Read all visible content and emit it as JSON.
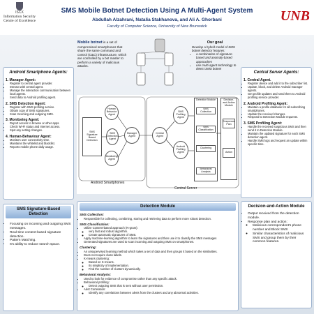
{
  "header": {
    "title": "SMS Mobile Botnet Detection Using A Multi-Agent System",
    "authors": "Abdullah Alzahrani, Natalia Stakhanova, and Ali A. Ghorbani",
    "affiliation": "Faculty of Computer Science, University of New Brunswick",
    "logo_left": {
      "name": "ISCX",
      "org": "Information Security Centre of Excellence"
    },
    "logo_right": "UNB"
  },
  "intro": {
    "term": "Mobile botnet",
    "text": "is a set of compromised smartphones that share the same command and control (C&C) infrastructure, which are controlled by a bot master to perform a variety of malicious attacks."
  },
  "goal": {
    "title": "Our goal",
    "text": "Develop a hybrid model of SMS botnet detector features:",
    "items": [
      "a combination of signature-based and anomaly-based approaches",
      "use multi-agent technology to detect SMS botnet"
    ]
  },
  "android_agents": {
    "title": "Android Smartphone Agents:",
    "agents": [
      {
        "name": "1. Manager Agent:",
        "items": [
          "Register to central agent provider.",
          "Interact with central agent.",
          "Manage the interaction communication between local agents.",
          "Send data to Android profiling agent."
        ]
      },
      {
        "name": "2. SMS Detection Agent:",
        "items": [
          "Register with SMS profiling service.",
          "Obtain copy of SMS signatures.",
          "Scan Incoming and outgoing SMS."
        ]
      },
      {
        "name": "3. Monitoring Agent:",
        "items": [
          "Report access to browse or other apps.",
          "Check Wi-Fi status and Internet access.",
          "Spot any setting changes."
        ]
      },
      {
        "name": "4. Human-Behaviour Agent:",
        "items": [
          "Monitors user connectivity time.",
          "Maintains the whitelist and blacklist.",
          "Reports mobile phone daily usage."
        ]
      }
    ]
  },
  "server_agents": {
    "title": "Central Server Agents:",
    "agents": [
      {
        "name": "1. Central Agent.",
        "items": [
          "Register device and add it to the subscriber list.",
          "Update, block, and delete Android manager agents.",
          "Get profile updates and send them to Android profiling service provider."
        ]
      },
      {
        "name": "2. Android Profiling Agent:",
        "items": [
          "Maintain a profile database for all subscribing smartphones.",
          "Update the received changes.",
          "Respond to Detection Module requests."
        ]
      },
      {
        "name": "3. SMS Profiling Agent:",
        "items": [
          "Handle the received suspicious SMS and then send it to Detection Module.",
          "Maintain the updated signature for each SMS detection agent.",
          "Handle SMS logs and request an update within specific time."
        ]
      }
    ]
  },
  "diagram": {
    "regions": [
      "Android Smartphones",
      "Central Server"
    ],
    "nodes": [
      "Human Behavior Agent",
      "SMS Signature Based Detection",
      "SMS Detection Agent",
      "Manager Agent",
      "Monitoring Agent",
      "Central Agent",
      "SMS Profiling Agent",
      "Android Profiling Agent",
      "Detection Module",
      "SMS Collection",
      "SMS Classification",
      "Clustering",
      "Behavioral Analysis",
      "Decision-and-Action Module",
      "Responses Plan",
      "Action"
    ]
  },
  "signature": {
    "title": "SMS Signature-Based Detection",
    "items": [
      "Focusing on incoming and outgoing SMS messages.",
      "Real-time content-based signature detection.",
      "Pattern Matching.",
      "It's ability to reduce search space."
    ]
  },
  "detection": {
    "title": "Detection Module",
    "sections": [
      {
        "name": "SMS Collection:",
        "items": [
          {
            "text": "Responsible for collecting, combining, storing and retrieving data to perform more robust detection."
          }
        ]
      },
      {
        "name": "SMS Classification:",
        "items": [
          {
            "text": "Utilize Content-based approach (N-gram):",
            "sub": [
              "very fast and robust algorithm.",
              "Create automatic signatures of SMS."
            ]
          },
          {
            "text": "Apply machine-learning algorithm to learn the signatures and then use it to classify the SMS messages"
          },
          {
            "text": "Generated signatures are used to scan incoming and outgoing SMS on smartphones."
          }
        ]
      },
      {
        "name": "Clustering:",
        "items": [
          {
            "text": "An unsupervised learning method which takes a set of data and then groups it based on the similarities."
          },
          {
            "text": "Does not require class labels."
          },
          {
            "text": "K-means clustering:",
            "sub": [
              "Based on K-means.",
              "Its simplicity of implementation.",
              "Find the number of clusters dynamically."
            ]
          }
        ]
      },
      {
        "name": "Behavioral Analysis:",
        "items": [
          {
            "text": "Used to look for evidence of compromise rather than any specific attack."
          },
          {
            "text": "Behavioral profiling:",
            "sub": [
              "Detect outgoing SMS that is sent without user permission."
            ]
          },
          {
            "text": "Alert Correlation:",
            "sub": [
              "Identify any correlations between alerts from the clusters and any abnormal activities."
            ]
          }
        ]
      }
    ]
  },
  "decision": {
    "title": "Decision-and-Action Module",
    "items": [
      {
        "text": "Output received from the detection module."
      },
      {
        "text": "Response plan and action:",
        "sub": [
          "Malicious correspondent's phone number and Block SMS",
          "Similar characteristics of malicious SMS and group them by their common features."
        ]
      }
    ]
  }
}
